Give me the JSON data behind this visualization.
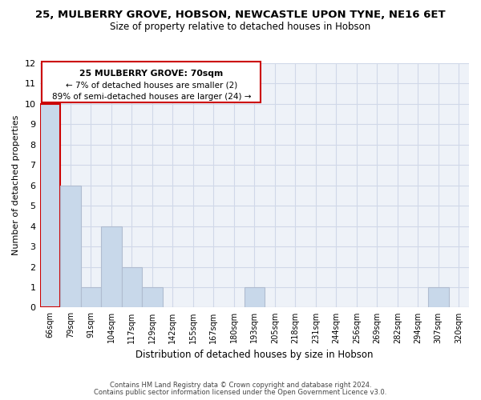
{
  "title": "25, MULBERRY GROVE, HOBSON, NEWCASTLE UPON TYNE, NE16 6ET",
  "subtitle": "Size of property relative to detached houses in Hobson",
  "xlabel": "Distribution of detached houses by size in Hobson",
  "ylabel": "Number of detached properties",
  "bins": [
    "66sqm",
    "79sqm",
    "91sqm",
    "104sqm",
    "117sqm",
    "129sqm",
    "142sqm",
    "155sqm",
    "167sqm",
    "180sqm",
    "193sqm",
    "205sqm",
    "218sqm",
    "231sqm",
    "244sqm",
    "256sqm",
    "269sqm",
    "282sqm",
    "294sqm",
    "307sqm",
    "320sqm"
  ],
  "counts": [
    10,
    6,
    1,
    4,
    2,
    1,
    0,
    0,
    0,
    0,
    1,
    0,
    0,
    0,
    0,
    0,
    0,
    0,
    0,
    1,
    0
  ],
  "bar_color": "#c8d8ea",
  "bar_edgecolor": "#b0bcd0",
  "highlight_bar_index": 0,
  "highlight_edgecolor": "#cc0000",
  "ylim": [
    0,
    12
  ],
  "yticks": [
    0,
    1,
    2,
    3,
    4,
    5,
    6,
    7,
    8,
    9,
    10,
    11,
    12
  ],
  "annotation_line1": "25 MULBERRY GROVE: 70sqm",
  "annotation_line2": "← 7% of detached houses are smaller (2)",
  "annotation_line3": "89% of semi-detached houses are larger (24) →",
  "annotation_box_edgecolor": "#cc0000",
  "footer1": "Contains HM Land Registry data © Crown copyright and database right 2024.",
  "footer2": "Contains public sector information licensed under the Open Government Licence v3.0.",
  "grid_color": "#d0d8e8",
  "background_color": "#eef2f8"
}
